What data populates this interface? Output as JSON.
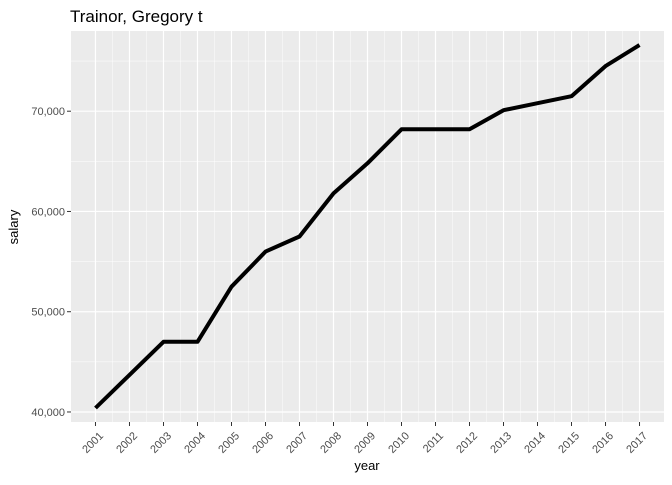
{
  "chart_data": {
    "type": "line",
    "title": "Trainor, Gregory t",
    "xlabel": "year",
    "ylabel": "salary",
    "x": [
      2001,
      2002,
      2003,
      2004,
      2005,
      2006,
      2007,
      2008,
      2009,
      2010,
      2011,
      2012,
      2013,
      2014,
      2015,
      2016,
      2017
    ],
    "x_tick_labels": [
      "2001",
      "2002",
      "2003",
      "2004",
      "2005",
      "2006",
      "2007",
      "2008",
      "2009",
      "2010",
      "2011",
      "2012",
      "2013",
      "2014",
      "2015",
      "2016",
      "2017"
    ],
    "series": [
      {
        "values": [
          40400,
          43700,
          47000,
          47000,
          52500,
          56000,
          57500,
          61800,
          64800,
          68200,
          68200,
          68200,
          70100,
          70800,
          71500,
          74500,
          76600
        ],
        "color": "#000000"
      }
    ],
    "ylim": [
      39000,
      78000
    ],
    "y_ticks": [
      40000,
      50000,
      60000,
      70000
    ],
    "y_tick_labels": [
      "40,000",
      "50,000",
      "60,000",
      "70,000"
    ],
    "grid": true,
    "legend": "none",
    "colors": {
      "panel_background": "#ebebeb",
      "grid_major": "#ffffff",
      "line": "#000000",
      "axis_text": "#4d4d4d",
      "title_text": "#000000"
    }
  }
}
